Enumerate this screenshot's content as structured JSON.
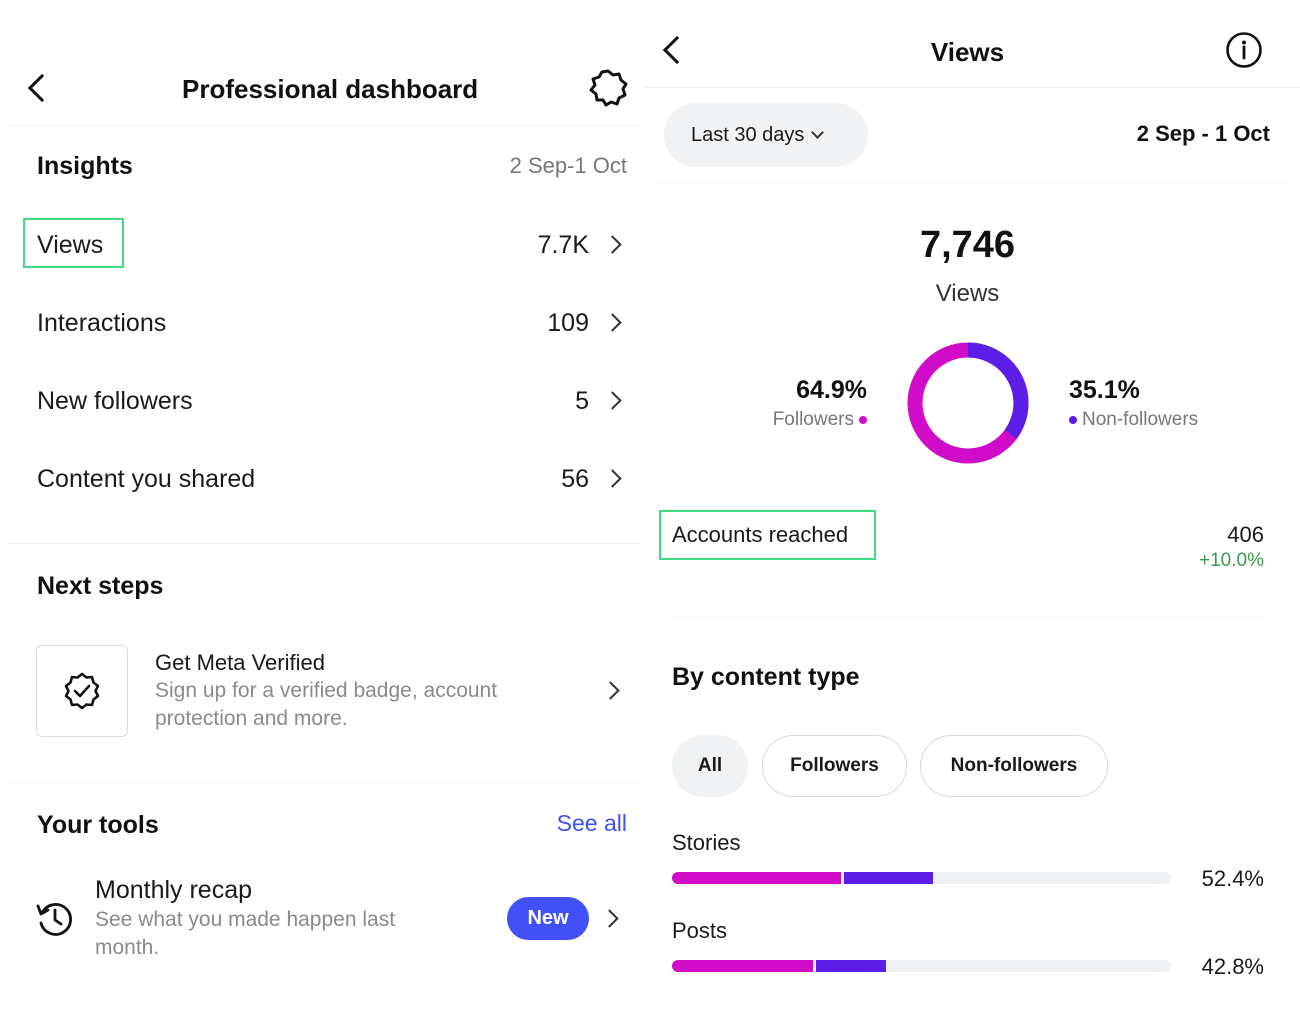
{
  "left": {
    "title": "Professional dashboard",
    "insights": {
      "heading": "Insights",
      "date_range": "2 Sep-1 Oct",
      "rows": [
        {
          "label": "Views",
          "value": "7.7K"
        },
        {
          "label": "Interactions",
          "value": "109"
        },
        {
          "label": "New followers",
          "value": "5"
        },
        {
          "label": "Content you shared",
          "value": "56"
        }
      ]
    },
    "next_steps": {
      "heading": "Next steps",
      "card_title": "Get Meta Verified",
      "card_desc_line1": "Sign up for a verified badge, account",
      "card_desc_line2": "protection and more."
    },
    "tools": {
      "heading": "Your tools",
      "see_all": "See all",
      "item_title": "Monthly recap",
      "item_desc_line1": "See what you made happen last",
      "item_desc_line2": "month.",
      "badge": "New"
    }
  },
  "right": {
    "title": "Views",
    "range_button": "Last 30 days",
    "date_range": "2 Sep - 1 Oct",
    "total": "7,746",
    "total_label": "Views",
    "followers_pct": "64.9%",
    "followers_label": "Followers",
    "nonfollowers_pct": "35.1%",
    "nonfollowers_label": "Non-followers",
    "accounts_reached_label": "Accounts reached",
    "accounts_reached_value": "406",
    "accounts_reached_change": "+10.0%",
    "by_content_heading": "By content type",
    "filters": [
      "All",
      "Followers",
      "Non-followers"
    ],
    "content_types": [
      {
        "label": "Stories",
        "pct": "52.4%",
        "total": 52.4,
        "followers": 33.8,
        "nonfollowers": 18.6
      },
      {
        "label": "Posts",
        "pct": "42.8%",
        "total": 42.8,
        "followers": 28.3,
        "nonfollowers": 14.5
      }
    ]
  },
  "colors": {
    "followers": "#d10cc8",
    "nonfollowers": "#5b1ee6",
    "accent_link": "#4150f7",
    "positive": "#3a9a4f",
    "highlight": "#3ddc84"
  }
}
